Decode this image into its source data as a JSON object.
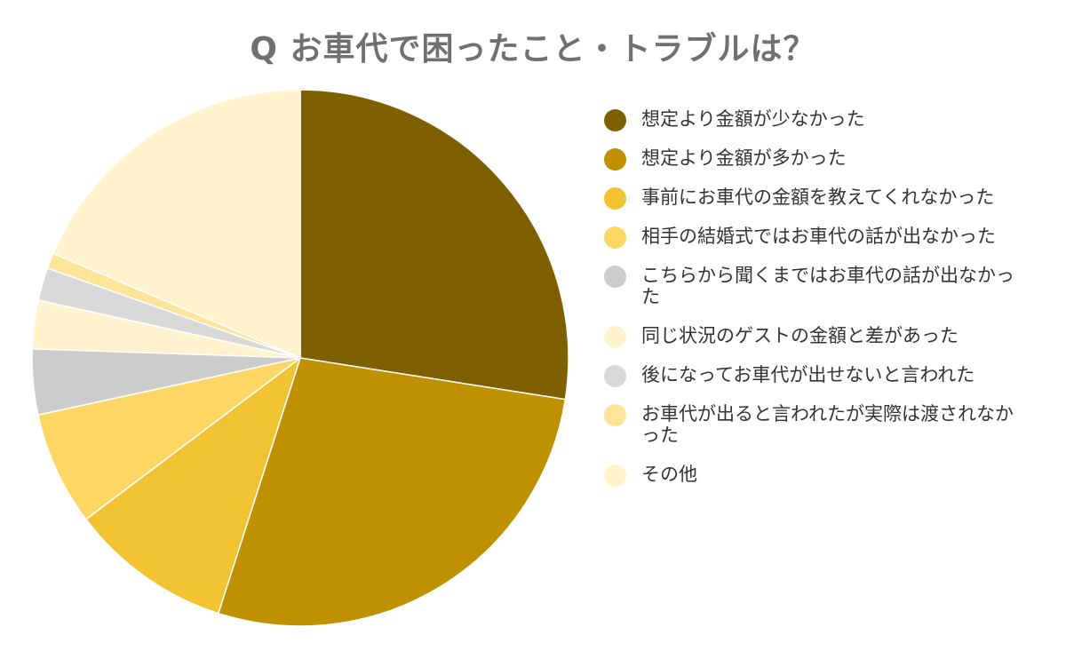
{
  "chart_data": {
    "type": "pie",
    "title": "Q お車代で困ったこと・トラブルは？",
    "legend_position": "right",
    "slices": [
      {
        "label": "想定より金額が少なかった",
        "value": 29.2,
        "color": "#7f6000"
      },
      {
        "label": "想定より金額が多かった",
        "value": 29.2,
        "color": "#bf9000"
      },
      {
        "label": "事前にお車代の金額を教えてくれなかった",
        "value": 10.4,
        "color": "#f1c232"
      },
      {
        "label": "相手の結婚式ではお車代の話が出なかった",
        "value": 7.3,
        "color": "#fdd663"
      },
      {
        "label": "こちらから聞くまではお車代の話が出なかった",
        "value": 4.2,
        "color": "#cccccc"
      },
      {
        "label": "同じ状況のゲストの金額と差があった",
        "value": 3.1,
        "color": "#fff2cc"
      },
      {
        "label": "後になってお車代が出せないと言われた",
        "value": 2.1,
        "color": "#d9d9d9"
      },
      {
        "label": "お車代が出ると言われたが実際は渡されなかった",
        "value": 1.0,
        "color": "#ffe599"
      },
      {
        "label": "その他",
        "value": 19.8,
        "color": "#fff2cc"
      }
    ]
  }
}
